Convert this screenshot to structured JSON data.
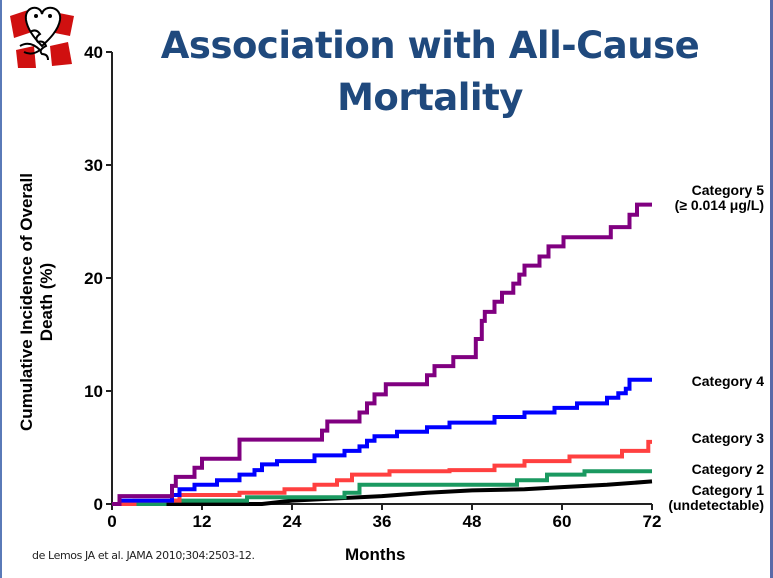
{
  "slide": {
    "title_line1": "Association with All-Cause",
    "title_line2": "Mortality",
    "citation": "de Lemos  JA  et al.  JAMA 2010;304:2503-12.",
    "logo_icon": "cartoon-heart-hug-logo"
  },
  "chart_data": {
    "type": "line",
    "style": "step",
    "title": "Association with All-Cause Mortality",
    "xlabel": "Months",
    "ylabel": "Cumulative Incidence of Overall Death (%)",
    "xlim": [
      0,
      72
    ],
    "ylim": [
      0,
      40
    ],
    "xticks": [
      "0",
      "12",
      "24",
      "36",
      "48",
      "60",
      "72"
    ],
    "yticks": [
      "0",
      "10",
      "20",
      "30",
      "40"
    ],
    "grid": false,
    "legend": "right-inline",
    "series": [
      {
        "name": "Category 5",
        "label_lines": [
          "Category 5",
          "(≥ 0.014  μg/L)"
        ],
        "color": "#800080",
        "points": [
          [
            0,
            0
          ],
          [
            1,
            0
          ],
          [
            1,
            0.7
          ],
          [
            8,
            0.7
          ],
          [
            8,
            1.6
          ],
          [
            8.5,
            1.6
          ],
          [
            8.5,
            2.4
          ],
          [
            11,
            2.4
          ],
          [
            11,
            3.2
          ],
          [
            12,
            3.2
          ],
          [
            12,
            4.0
          ],
          [
            17,
            4.0
          ],
          [
            17,
            5.7
          ],
          [
            28,
            5.7
          ],
          [
            28,
            6.5
          ],
          [
            28.7,
            6.5
          ],
          [
            28.7,
            7.3
          ],
          [
            33,
            7.3
          ],
          [
            33,
            8.1
          ],
          [
            34,
            8.1
          ],
          [
            34,
            8.9
          ],
          [
            35,
            8.9
          ],
          [
            35,
            9.7
          ],
          [
            36.5,
            9.7
          ],
          [
            36.5,
            10.6
          ],
          [
            42,
            10.6
          ],
          [
            42,
            11.4
          ],
          [
            43,
            11.4
          ],
          [
            43,
            12.2
          ],
          [
            45.5,
            12.2
          ],
          [
            45.5,
            13.0
          ],
          [
            48.5,
            13.0
          ],
          [
            48.5,
            14.6
          ],
          [
            49.3,
            14.6
          ],
          [
            49.3,
            16.2
          ],
          [
            49.7,
            16.2
          ],
          [
            49.7,
            17.0
          ],
          [
            51,
            17.0
          ],
          [
            51,
            17.9
          ],
          [
            52,
            17.9
          ],
          [
            52,
            18.7
          ],
          [
            53.5,
            18.7
          ],
          [
            53.5,
            19.5
          ],
          [
            54.3,
            19.5
          ],
          [
            54.3,
            20.3
          ],
          [
            55,
            20.3
          ],
          [
            55,
            21.1
          ],
          [
            57,
            21.1
          ],
          [
            57,
            21.9
          ],
          [
            58.2,
            21.9
          ],
          [
            58.2,
            22.8
          ],
          [
            60.2,
            22.8
          ],
          [
            60.2,
            23.6
          ],
          [
            66.5,
            23.6
          ],
          [
            66.5,
            24.5
          ],
          [
            69,
            24.5
          ],
          [
            69,
            25.6
          ],
          [
            70,
            25.6
          ],
          [
            70,
            26.5
          ],
          [
            72,
            26.5
          ]
        ]
      },
      {
        "name": "Category 4",
        "label_lines": [
          "Category 4"
        ],
        "color": "#0000ff",
        "points": [
          [
            0,
            0
          ],
          [
            1,
            0
          ],
          [
            1,
            0.3
          ],
          [
            8,
            0.3
          ],
          [
            8,
            0.8
          ],
          [
            9,
            0.8
          ],
          [
            9,
            1.3
          ],
          [
            11,
            1.3
          ],
          [
            11,
            1.7
          ],
          [
            14,
            1.7
          ],
          [
            14,
            2.1
          ],
          [
            17,
            2.1
          ],
          [
            17,
            2.6
          ],
          [
            19,
            2.6
          ],
          [
            19,
            3.0
          ],
          [
            20,
            3.0
          ],
          [
            20,
            3.5
          ],
          [
            22,
            3.5
          ],
          [
            22,
            3.8
          ],
          [
            27,
            3.8
          ],
          [
            27,
            4.3
          ],
          [
            31,
            4.3
          ],
          [
            31,
            4.7
          ],
          [
            33,
            4.7
          ],
          [
            33,
            5.1
          ],
          [
            34,
            5.1
          ],
          [
            34,
            5.6
          ],
          [
            35,
            5.6
          ],
          [
            35,
            6.0
          ],
          [
            38,
            6.0
          ],
          [
            38,
            6.4
          ],
          [
            42,
            6.4
          ],
          [
            42,
            6.8
          ],
          [
            45,
            6.8
          ],
          [
            45,
            7.2
          ],
          [
            51,
            7.2
          ],
          [
            51,
            7.7
          ],
          [
            55,
            7.7
          ],
          [
            55,
            8.1
          ],
          [
            59,
            8.1
          ],
          [
            59,
            8.5
          ],
          [
            62,
            8.5
          ],
          [
            62,
            8.9
          ],
          [
            66,
            8.9
          ],
          [
            66,
            9.4
          ],
          [
            67.5,
            9.4
          ],
          [
            67.5,
            9.8
          ],
          [
            68.5,
            9.8
          ],
          [
            68.5,
            10.2
          ],
          [
            69,
            10.2
          ],
          [
            69,
            11.0
          ],
          [
            72,
            11.0
          ]
        ]
      },
      {
        "name": "Category 3",
        "label_lines": [
          "Category 3"
        ],
        "color": "#ff4040",
        "points": [
          [
            0,
            0
          ],
          [
            3,
            0
          ],
          [
            3,
            0.3
          ],
          [
            9,
            0.3
          ],
          [
            9,
            0.8
          ],
          [
            17,
            0.8
          ],
          [
            17,
            1.0
          ],
          [
            23,
            1.0
          ],
          [
            23,
            1.3
          ],
          [
            27,
            1.3
          ],
          [
            27,
            1.7
          ],
          [
            30,
            1.7
          ],
          [
            30,
            2.1
          ],
          [
            32,
            2.1
          ],
          [
            32,
            2.6
          ],
          [
            37,
            2.6
          ],
          [
            37,
            2.9
          ],
          [
            45,
            2.9
          ],
          [
            45,
            3.0
          ],
          [
            51,
            3.0
          ],
          [
            51,
            3.4
          ],
          [
            55,
            3.4
          ],
          [
            55,
            3.8
          ],
          [
            61,
            3.8
          ],
          [
            61,
            4.2
          ],
          [
            68,
            4.2
          ],
          [
            68,
            4.7
          ],
          [
            71.5,
            4.7
          ],
          [
            71.5,
            5.5
          ],
          [
            72,
            5.5
          ]
        ]
      },
      {
        "name": "Category 2",
        "label_lines": [
          "Category 2"
        ],
        "color": "#1a9960",
        "points": [
          [
            0,
            0
          ],
          [
            7,
            0
          ],
          [
            7,
            0.3
          ],
          [
            18,
            0.3
          ],
          [
            18,
            0.6
          ],
          [
            31,
            0.6
          ],
          [
            31,
            1.0
          ],
          [
            33,
            1.0
          ],
          [
            33,
            1.7
          ],
          [
            54,
            1.7
          ],
          [
            54,
            2.1
          ],
          [
            58,
            2.1
          ],
          [
            58,
            2.6
          ],
          [
            63,
            2.6
          ],
          [
            63,
            2.9
          ],
          [
            72,
            2.9
          ]
        ]
      },
      {
        "name": "Category 1",
        "label_lines": [
          "Category 1",
          "(undetectable)"
        ],
        "color": "#000000",
        "points": [
          [
            0,
            0
          ],
          [
            20,
            0
          ],
          [
            24,
            0.3
          ],
          [
            30,
            0.5
          ],
          [
            36,
            0.7
          ],
          [
            42,
            1.0
          ],
          [
            48,
            1.2
          ],
          [
            55,
            1.3
          ],
          [
            60,
            1.5
          ],
          [
            66,
            1.7
          ],
          [
            72,
            2.0
          ]
        ]
      }
    ]
  }
}
